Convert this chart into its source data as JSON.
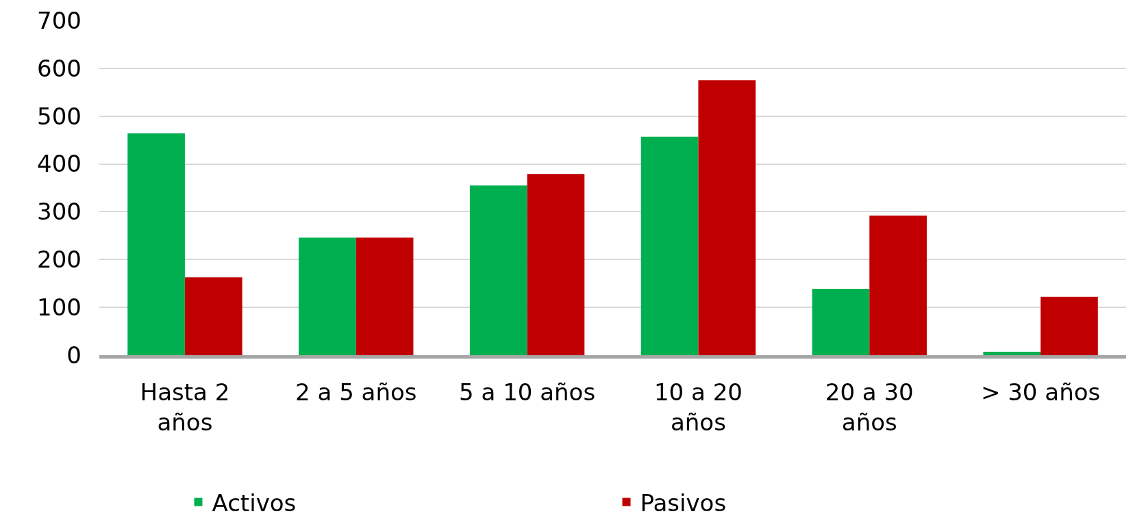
{
  "chart_data": {
    "type": "bar",
    "categories": [
      "Hasta 2\naños",
      "2 a 5 años",
      "5 a 10 años",
      "10 a 20\naños",
      "20 a 30\naños",
      "> 30 años"
    ],
    "series": [
      {
        "name": "Activos",
        "color": "#00b050",
        "values": [
          464,
          246,
          355,
          457,
          139,
          7
        ]
      },
      {
        "name": "Pasivos",
        "color": "#c00000",
        "values": [
          163,
          246,
          379,
          575,
          292,
          122
        ]
      }
    ],
    "ylim": [
      0,
      700
    ],
    "yticks": [
      0,
      100,
      200,
      300,
      400,
      500,
      600,
      700
    ],
    "grid": "y",
    "legend": "bottom"
  }
}
